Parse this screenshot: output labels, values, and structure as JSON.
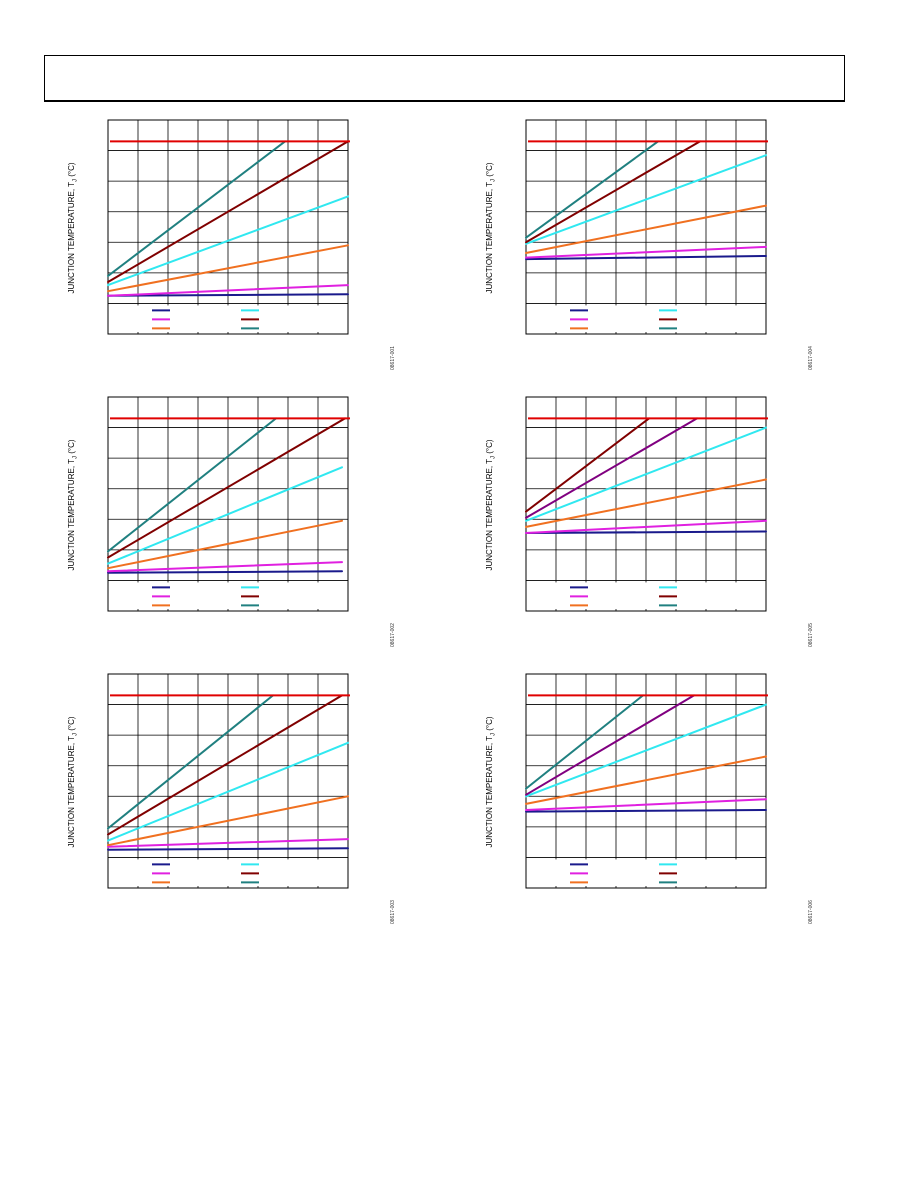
{
  "page": {
    "header": ""
  },
  "y_axis_title": "JUNCTION TEMPERATURE, T",
  "y_axis_sub": "J",
  "y_axis_unit": " (°C)",
  "colors": {
    "navy": "#1a1a8c",
    "magenta": "#e020e0",
    "orange": "#f07020",
    "cyan": "#30e8f0",
    "maroon": "#800000",
    "teal": "#208080",
    "purple": "#800080",
    "red": "#e00000"
  },
  "chart_data": [
    {
      "id": "08617-001",
      "type": "line",
      "title": "",
      "xlabel": "",
      "ylabel": "JUNCTION TEMPERATURE, TJ (°C)",
      "xlim": [
        0,
        8
      ],
      "ylim": [
        0,
        7
      ],
      "limit_line": {
        "y": 6.3,
        "color": "red"
      },
      "legend": [
        [
          "navy",
          "cyan"
        ],
        [
          "magenta",
          "maroon"
        ],
        [
          "orange",
          "teal"
        ]
      ],
      "series": [
        {
          "color": "navy",
          "x": [
            0,
            8
          ],
          "y": [
            1.25,
            1.3
          ]
        },
        {
          "color": "magenta",
          "x": [
            0,
            8
          ],
          "y": [
            1.25,
            1.6
          ]
        },
        {
          "color": "orange",
          "x": [
            0,
            8
          ],
          "y": [
            1.4,
            2.9
          ]
        },
        {
          "color": "cyan",
          "x": [
            0,
            8
          ],
          "y": [
            1.6,
            4.5
          ]
        },
        {
          "color": "maroon",
          "x": [
            0,
            8
          ],
          "y": [
            1.7,
            6.3
          ]
        },
        {
          "color": "teal",
          "x": [
            0,
            5.9
          ],
          "y": [
            1.9,
            6.3
          ]
        }
      ]
    },
    {
      "id": "08617-004",
      "type": "line",
      "title": "",
      "xlabel": "",
      "ylabel": "JUNCTION TEMPERATURE, TJ (°C)",
      "xlim": [
        0,
        8
      ],
      "ylim": [
        0,
        7
      ],
      "limit_line": {
        "y": 6.3,
        "color": "red"
      },
      "legend": [
        [
          "navy",
          "cyan"
        ],
        [
          "magenta",
          "maroon"
        ],
        [
          "orange",
          "teal"
        ]
      ],
      "series": [
        {
          "color": "navy",
          "x": [
            0,
            8
          ],
          "y": [
            2.45,
            2.55
          ]
        },
        {
          "color": "magenta",
          "x": [
            0,
            8
          ],
          "y": [
            2.5,
            2.85
          ]
        },
        {
          "color": "orange",
          "x": [
            0,
            8
          ],
          "y": [
            2.65,
            4.2
          ]
        },
        {
          "color": "cyan",
          "x": [
            0,
            8
          ],
          "y": [
            2.95,
            5.85
          ]
        },
        {
          "color": "maroon",
          "x": [
            0,
            5.8
          ],
          "y": [
            3.0,
            6.3
          ]
        },
        {
          "color": "teal",
          "x": [
            0,
            4.4
          ],
          "y": [
            3.15,
            6.3
          ]
        }
      ]
    },
    {
      "id": "08617-002",
      "type": "line",
      "title": "",
      "xlabel": "",
      "ylabel": "JUNCTION TEMPERATURE, TJ (°C)",
      "xlim": [
        0,
        8
      ],
      "ylim": [
        0,
        7
      ],
      "limit_line": {
        "y": 6.3,
        "color": "red"
      },
      "legend": [
        [
          "navy",
          "cyan"
        ],
        [
          "magenta",
          "maroon"
        ],
        [
          "orange",
          "teal"
        ]
      ],
      "series": [
        {
          "color": "navy",
          "x": [
            0,
            7.8
          ],
          "y": [
            1.25,
            1.3
          ]
        },
        {
          "color": "magenta",
          "x": [
            0,
            7.8
          ],
          "y": [
            1.3,
            1.6
          ]
        },
        {
          "color": "orange",
          "x": [
            0,
            7.8
          ],
          "y": [
            1.4,
            2.95
          ]
        },
        {
          "color": "cyan",
          "x": [
            0,
            7.8
          ],
          "y": [
            1.55,
            4.7
          ]
        },
        {
          "color": "maroon",
          "x": [
            0,
            7.9
          ],
          "y": [
            1.75,
            6.3
          ]
        },
        {
          "color": "teal",
          "x": [
            0,
            5.6
          ],
          "y": [
            1.95,
            6.3
          ]
        }
      ]
    },
    {
      "id": "08617-005",
      "type": "line",
      "title": "",
      "xlabel": "",
      "ylabel": "JUNCTION TEMPERATURE, TJ (°C)",
      "xlim": [
        0,
        8
      ],
      "ylim": [
        0,
        7
      ],
      "limit_line": {
        "y": 6.3,
        "color": "red"
      },
      "legend": [
        [
          "navy",
          "cyan"
        ],
        [
          "magenta",
          "maroon"
        ],
        [
          "orange",
          "teal"
        ]
      ],
      "series": [
        {
          "color": "navy",
          "x": [
            0,
            8
          ],
          "y": [
            2.55,
            2.6
          ]
        },
        {
          "color": "magenta",
          "x": [
            0,
            8
          ],
          "y": [
            2.55,
            2.95
          ]
        },
        {
          "color": "orange",
          "x": [
            0,
            8
          ],
          "y": [
            2.75,
            4.3
          ]
        },
        {
          "color": "cyan",
          "x": [
            0,
            8
          ],
          "y": [
            2.95,
            6.0
          ]
        },
        {
          "color": "purple",
          "x": [
            0,
            5.7
          ],
          "y": [
            3.05,
            6.3
          ]
        },
        {
          "color": "maroon",
          "x": [
            0,
            4.1
          ],
          "y": [
            3.25,
            6.3
          ]
        }
      ]
    },
    {
      "id": "08617-003",
      "type": "line",
      "title": "",
      "xlabel": "",
      "ylabel": "JUNCTION TEMPERATURE, TJ (°C)",
      "xlim": [
        0,
        8
      ],
      "ylim": [
        0,
        7
      ],
      "limit_line": {
        "y": 6.3,
        "color": "red"
      },
      "legend": [
        [
          "navy",
          "cyan"
        ],
        [
          "magenta",
          "maroon"
        ],
        [
          "orange",
          "teal"
        ]
      ],
      "series": [
        {
          "color": "navy",
          "x": [
            0,
            8
          ],
          "y": [
            1.25,
            1.3
          ]
        },
        {
          "color": "magenta",
          "x": [
            0,
            8
          ],
          "y": [
            1.35,
            1.6
          ]
        },
        {
          "color": "orange",
          "x": [
            0,
            8
          ],
          "y": [
            1.4,
            3.0
          ]
        },
        {
          "color": "cyan",
          "x": [
            0,
            8
          ],
          "y": [
            1.55,
            4.75
          ]
        },
        {
          "color": "maroon",
          "x": [
            0,
            7.8
          ],
          "y": [
            1.75,
            6.3
          ]
        },
        {
          "color": "teal",
          "x": [
            0,
            5.5
          ],
          "y": [
            1.95,
            6.3
          ]
        }
      ]
    },
    {
      "id": "08617-006",
      "type": "line",
      "title": "",
      "xlabel": "",
      "ylabel": "JUNCTION TEMPERATURE, TJ (°C)",
      "xlim": [
        0,
        8
      ],
      "ylim": [
        0,
        7
      ],
      "limit_line": {
        "y": 6.3,
        "color": "red"
      },
      "legend": [
        [
          "navy",
          "cyan"
        ],
        [
          "magenta",
          "maroon"
        ],
        [
          "orange",
          "teal"
        ]
      ],
      "series": [
        {
          "color": "navy",
          "x": [
            0,
            8
          ],
          "y": [
            2.5,
            2.55
          ]
        },
        {
          "color": "magenta",
          "x": [
            0,
            8
          ],
          "y": [
            2.55,
            2.9
          ]
        },
        {
          "color": "orange",
          "x": [
            0,
            8
          ],
          "y": [
            2.75,
            4.3
          ]
        },
        {
          "color": "cyan",
          "x": [
            0,
            8
          ],
          "y": [
            3.0,
            6.0
          ]
        },
        {
          "color": "purple",
          "x": [
            0,
            5.6
          ],
          "y": [
            3.05,
            6.3
          ]
        },
        {
          "color": "teal",
          "x": [
            0,
            3.9
          ],
          "y": [
            3.25,
            6.3
          ]
        }
      ]
    }
  ]
}
